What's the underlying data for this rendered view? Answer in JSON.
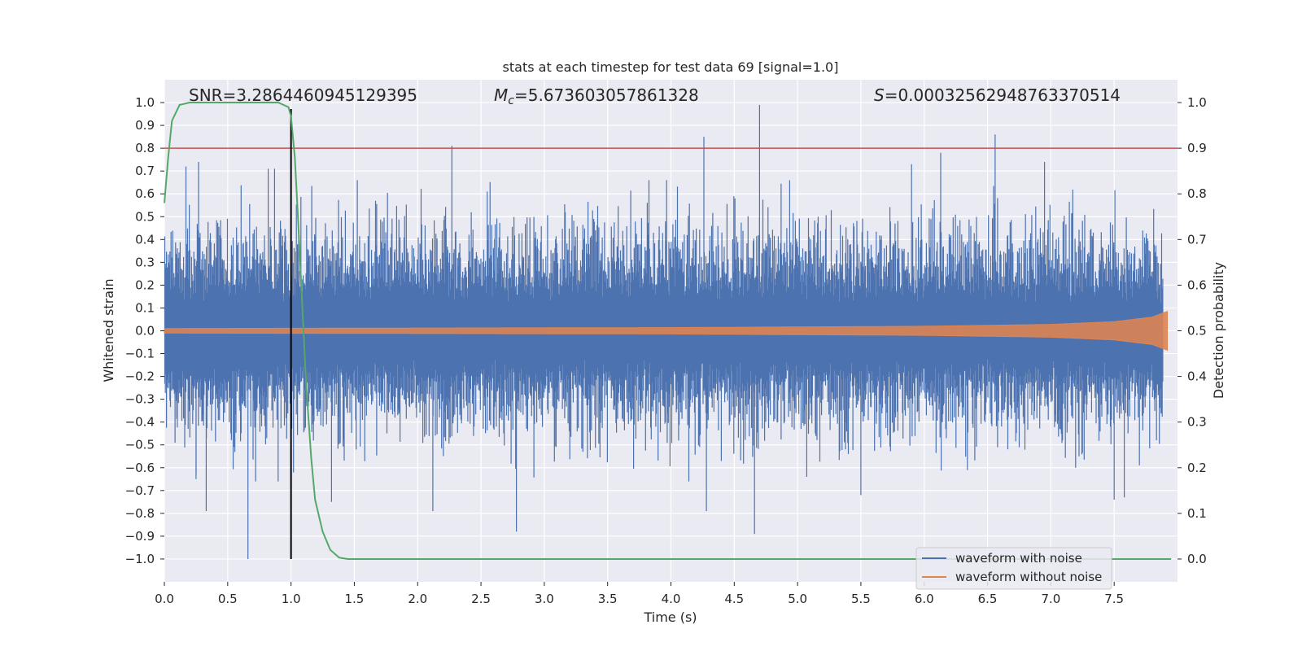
{
  "chart_data": {
    "type": "line",
    "title": "stats at each timestep for test data 69 [signal=1.0]",
    "xlabel": "Time (s)",
    "ylabel_left": "Whitened strain",
    "ylabel_right": "Detection probability",
    "xlim": [
      0.0,
      8.0
    ],
    "ylim_left": [
      -1.1,
      1.1
    ],
    "ylim_right": [
      -0.05,
      1.05
    ],
    "x_ticks": [
      "0.0",
      "0.5",
      "1.0",
      "1.5",
      "2.0",
      "2.5",
      "3.0",
      "3.5",
      "4.0",
      "4.5",
      "5.0",
      "5.5",
      "6.0",
      "6.5",
      "7.0",
      "7.5"
    ],
    "y_left_ticks": [
      "1.0",
      "0.9",
      "0.8",
      "0.7",
      "0.6",
      "0.5",
      "0.4",
      "0.3",
      "0.2",
      "0.1",
      "0.0",
      "−0.1",
      "−0.2",
      "−0.3",
      "−0.4",
      "−0.5",
      "−0.6",
      "−0.7",
      "−0.8",
      "−0.9",
      "−1.0"
    ],
    "y_right_ticks": [
      "1.0",
      "0.9",
      "0.8",
      "0.7",
      "0.6",
      "0.5",
      "0.4",
      "0.3",
      "0.2",
      "0.1",
      "0.0"
    ],
    "annotations": {
      "snr": "SNR=3.2864460945129395",
      "mc_label": "M",
      "mc_sub": "c",
      "mc_value": "=5.673603057861328",
      "s_label": "S",
      "s_value": "=0.00032562948763370514"
    },
    "threshold_right": 0.9,
    "event_time": 1.0,
    "series": [
      {
        "name": "waveform with noise",
        "color": "#4c72b0",
        "axis": "left",
        "description": "whitened strain noise, amplitude envelope ~±0.5 with occasional spikes",
        "spikes": [
          {
            "t": 0.66,
            "v": -1.0
          },
          {
            "t": 4.7,
            "v": 0.99
          },
          {
            "t": 4.26,
            "v": 0.85
          },
          {
            "t": 6.56,
            "v": 0.86
          },
          {
            "t": 2.27,
            "v": 0.81
          },
          {
            "t": 0.33,
            "v": -0.79
          },
          {
            "t": 4.28,
            "v": -0.79
          },
          {
            "t": 4.66,
            "v": -0.89
          },
          {
            "t": 2.78,
            "v": -0.88
          },
          {
            "t": 6.13,
            "v": 0.78
          },
          {
            "t": 0.27,
            "v": 0.74
          },
          {
            "t": 0.17,
            "v": 0.72
          },
          {
            "t": 0.82,
            "v": 0.71
          },
          {
            "t": 0.87,
            "v": 0.71
          },
          {
            "t": 5.9,
            "v": 0.73
          },
          {
            "t": 6.95,
            "v": 0.74
          },
          {
            "t": 2.12,
            "v": -0.79
          },
          {
            "t": 1.32,
            "v": -0.75
          },
          {
            "t": 7.5,
            "v": -0.74
          },
          {
            "t": 7.58,
            "v": -0.73
          },
          {
            "t": 5.5,
            "v": -0.72
          },
          {
            "t": 0.72,
            "v": -0.66
          },
          {
            "t": 0.25,
            "v": -0.65
          }
        ]
      },
      {
        "name": "waveform without noise",
        "color": "#dd8452",
        "axis": "left",
        "description": "chirp template; amplitude grows from ~0.01 to ~0.08 near t=7.9",
        "envelope": [
          {
            "t": 0.0,
            "a": 0.01
          },
          {
            "t": 2.0,
            "a": 0.012
          },
          {
            "t": 4.0,
            "a": 0.014
          },
          {
            "t": 6.0,
            "a": 0.02
          },
          {
            "t": 7.0,
            "a": 0.028
          },
          {
            "t": 7.5,
            "a": 0.04
          },
          {
            "t": 7.8,
            "a": 0.06
          },
          {
            "t": 7.92,
            "a": 0.085
          }
        ]
      },
      {
        "name": "detection probability",
        "color": "#55a868",
        "axis": "right",
        "points": [
          {
            "t": 0.0,
            "v": 0.78
          },
          {
            "t": 0.03,
            "v": 0.88
          },
          {
            "t": 0.06,
            "v": 0.96
          },
          {
            "t": 0.12,
            "v": 0.995
          },
          {
            "t": 0.2,
            "v": 1.0
          },
          {
            "t": 0.5,
            "v": 1.0
          },
          {
            "t": 0.9,
            "v": 1.0
          },
          {
            "t": 0.98,
            "v": 0.99
          },
          {
            "t": 1.0,
            "v": 0.97
          },
          {
            "t": 1.03,
            "v": 0.88
          },
          {
            "t": 1.06,
            "v": 0.72
          },
          {
            "t": 1.09,
            "v": 0.55
          },
          {
            "t": 1.12,
            "v": 0.38
          },
          {
            "t": 1.16,
            "v": 0.22
          },
          {
            "t": 1.19,
            "v": 0.13
          },
          {
            "t": 1.25,
            "v": 0.06
          },
          {
            "t": 1.31,
            "v": 0.02
          },
          {
            "t": 1.38,
            "v": 0.003
          },
          {
            "t": 1.45,
            "v": 0.0
          },
          {
            "t": 3.0,
            "v": 0.0
          },
          {
            "t": 5.0,
            "v": 0.0
          },
          {
            "t": 7.95,
            "v": 0.0
          }
        ]
      }
    ],
    "legend": {
      "placement": "bottom-right",
      "entries": [
        "waveform with noise",
        "waveform without noise"
      ]
    },
    "colors": {
      "background": "#eaeaf2",
      "grid": "#ffffff",
      "threshold": "#c44e52",
      "event_line": "#000000"
    }
  }
}
